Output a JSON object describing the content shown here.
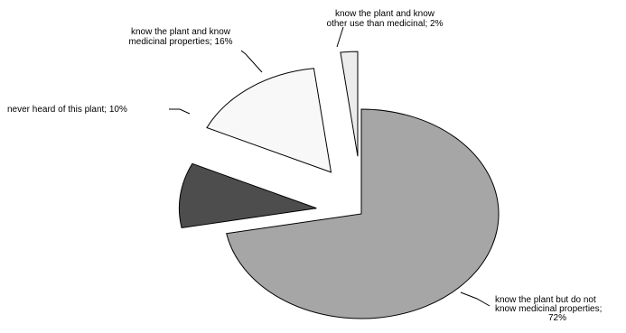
{
  "chart_data": {
    "type": "pie",
    "title": "",
    "slices": [
      {
        "lines": [
          "know the plant but do not",
          "know medicinal properties;",
          "72%"
        ],
        "value": 72,
        "color": "#a6a6a6"
      },
      {
        "lines": [
          "never heard of this plant; 10%"
        ],
        "value": 10,
        "color": "#4d4d4d"
      },
      {
        "lines": [
          "know the plant and know",
          "medicinal properties; 16%"
        ],
        "value": 16,
        "color": "#f8f8f8"
      },
      {
        "lines": [
          "know the plant and know",
          "other use than medicinal; 2%"
        ],
        "value": 2,
        "color": "#ececec"
      }
    ],
    "exploded": true,
    "legend": "none"
  }
}
